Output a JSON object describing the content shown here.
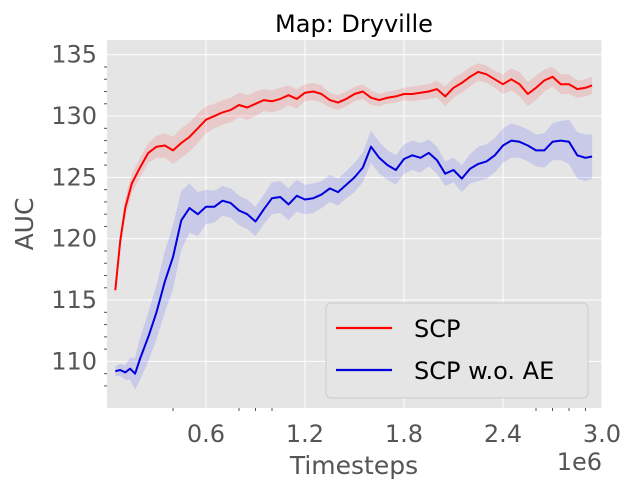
{
  "chart_data": {
    "type": "line",
    "title": "Map: Dryville",
    "xlabel": "Timesteps",
    "ylabel": "AUC",
    "x_offset_label": "1e6",
    "xlim": [
      0,
      3.0
    ],
    "ylim": [
      106.2,
      136.2
    ],
    "x_ticks": [
      0.6,
      1.2,
      1.8,
      2.4,
      3.0
    ],
    "x_tick_labels": [
      "0.6",
      "1.2",
      "1.8",
      "2.4",
      "3.0"
    ],
    "y_ticks": [
      110,
      115,
      120,
      125,
      130,
      135
    ],
    "y_tick_labels": [
      "110",
      "115",
      "120",
      "125",
      "130",
      "135"
    ],
    "grid": true,
    "legend_position": "lower-right",
    "series": [
      {
        "name": "SCP",
        "color": "#ff0000",
        "band_color": "#ff0000",
        "x": [
          0.05,
          0.08,
          0.11,
          0.15,
          0.2,
          0.25,
          0.3,
          0.35,
          0.4,
          0.45,
          0.5,
          0.55,
          0.6,
          0.65,
          0.7,
          0.75,
          0.8,
          0.85,
          0.9,
          0.95,
          1.0,
          1.05,
          1.1,
          1.15,
          1.2,
          1.25,
          1.3,
          1.35,
          1.4,
          1.45,
          1.5,
          1.55,
          1.6,
          1.65,
          1.7,
          1.75,
          1.8,
          1.85,
          1.9,
          1.95,
          2.0,
          2.05,
          2.1,
          2.15,
          2.2,
          2.25,
          2.3,
          2.35,
          2.4,
          2.45,
          2.5,
          2.55,
          2.6,
          2.65,
          2.7,
          2.75,
          2.8,
          2.85,
          2.9,
          2.94
        ],
        "values": [
          115.8,
          119.8,
          122.5,
          124.5,
          125.8,
          127.0,
          127.5,
          127.6,
          127.2,
          127.8,
          128.3,
          129.0,
          129.7,
          130.0,
          130.3,
          130.5,
          130.9,
          130.7,
          131.0,
          131.3,
          131.2,
          131.4,
          131.7,
          131.4,
          131.9,
          132.0,
          131.8,
          131.3,
          131.1,
          131.4,
          131.8,
          132.0,
          131.5,
          131.3,
          131.5,
          131.6,
          131.8,
          131.8,
          131.9,
          132.0,
          132.2,
          131.6,
          132.3,
          132.7,
          133.2,
          133.6,
          133.4,
          133.0,
          132.6,
          133.0,
          132.6,
          131.8,
          132.3,
          132.9,
          133.2,
          132.6,
          132.6,
          132.2,
          132.3,
          132.5
        ],
        "band": [
          0.5,
          0.7,
          0.8,
          0.8,
          0.8,
          0.8,
          0.9,
          1.0,
          1.1,
          1.2,
          1.2,
          1.2,
          1.1,
          1.0,
          1.0,
          1.0,
          1.0,
          1.0,
          1.0,
          0.9,
          0.9,
          0.9,
          0.8,
          0.8,
          0.7,
          0.7,
          0.7,
          0.6,
          0.6,
          0.6,
          0.6,
          0.6,
          0.6,
          0.5,
          0.5,
          0.5,
          0.5,
          0.6,
          0.6,
          0.6,
          0.7,
          0.8,
          0.8,
          0.8,
          0.8,
          0.7,
          0.7,
          0.7,
          0.8,
          0.9,
          1.0,
          1.0,
          1.0,
          0.9,
          0.8,
          0.8,
          0.8,
          0.7,
          0.7,
          0.7
        ]
      },
      {
        "name": "SCP w.o. AE",
        "color": "#0000dd",
        "band_color": "#0000ff",
        "x": [
          0.05,
          0.08,
          0.11,
          0.14,
          0.17,
          0.2,
          0.25,
          0.3,
          0.35,
          0.4,
          0.45,
          0.5,
          0.55,
          0.6,
          0.65,
          0.7,
          0.75,
          0.8,
          0.85,
          0.9,
          0.95,
          1.0,
          1.05,
          1.1,
          1.15,
          1.2,
          1.25,
          1.3,
          1.35,
          1.4,
          1.45,
          1.5,
          1.55,
          1.6,
          1.65,
          1.7,
          1.75,
          1.8,
          1.85,
          1.9,
          1.95,
          2.0,
          2.05,
          2.1,
          2.15,
          2.2,
          2.25,
          2.3,
          2.35,
          2.4,
          2.45,
          2.5,
          2.55,
          2.6,
          2.65,
          2.7,
          2.75,
          2.8,
          2.85,
          2.9,
          2.94
        ],
        "values": [
          109.2,
          109.3,
          109.1,
          109.4,
          109.0,
          110.2,
          112.0,
          114.0,
          116.5,
          118.5,
          121.5,
          122.5,
          122.0,
          122.6,
          122.6,
          123.1,
          122.9,
          122.3,
          122.0,
          121.4,
          122.4,
          123.3,
          123.4,
          122.8,
          123.5,
          123.2,
          123.3,
          123.6,
          124.1,
          123.8,
          124.4,
          125.0,
          125.8,
          127.5,
          126.6,
          126.0,
          125.6,
          126.5,
          126.8,
          126.6,
          127.0,
          126.4,
          125.3,
          125.6,
          124.9,
          125.7,
          126.1,
          126.3,
          126.8,
          127.6,
          128.0,
          127.9,
          127.6,
          127.2,
          127.2,
          127.9,
          128.0,
          127.9,
          126.8,
          126.6,
          126.7
        ],
        "band": [
          0.4,
          0.5,
          0.6,
          0.9,
          1.3,
          1.7,
          2.0,
          2.2,
          2.5,
          2.6,
          2.4,
          2.0,
          1.8,
          1.4,
          1.3,
          1.2,
          1.2,
          1.2,
          1.2,
          1.2,
          1.2,
          1.3,
          1.3,
          1.3,
          1.3,
          1.2,
          1.2,
          1.1,
          1.1,
          1.1,
          1.1,
          1.2,
          1.2,
          1.3,
          1.3,
          1.2,
          1.2,
          1.2,
          1.2,
          1.2,
          1.1,
          1.1,
          1.0,
          1.0,
          1.1,
          1.2,
          1.4,
          1.4,
          1.4,
          1.4,
          1.4,
          1.3,
          1.3,
          1.3,
          1.4,
          1.5,
          1.6,
          1.8,
          1.9,
          1.9,
          1.8
        ]
      }
    ]
  }
}
